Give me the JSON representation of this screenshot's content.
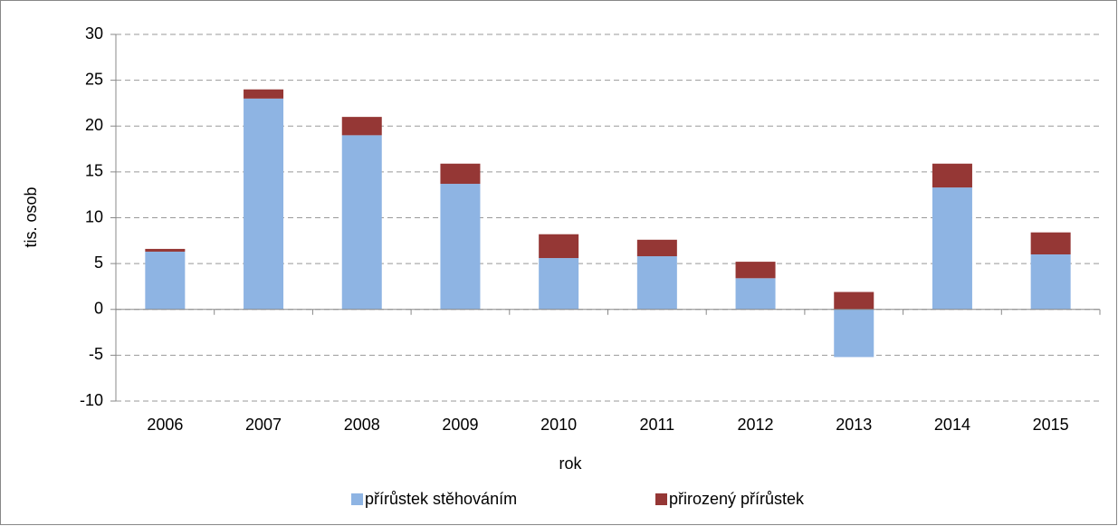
{
  "chart_data": {
    "type": "bar",
    "stacked": true,
    "x_label": "rok",
    "y_label": "tis. osob",
    "categories": [
      "2006",
      "2007",
      "2008",
      "2009",
      "2010",
      "2011",
      "2012",
      "2013",
      "2014",
      "2015"
    ],
    "series": [
      {
        "name": "přírůstek stěhováním",
        "color": "#8eb4e3",
        "values": [
          6.3,
          23.0,
          19.0,
          13.7,
          5.6,
          5.8,
          3.4,
          -5.2,
          13.3,
          6.0
        ]
      },
      {
        "name": "přirozený přírůstek",
        "color": "#953735",
        "values": [
          0.3,
          1.0,
          2.0,
          2.2,
          2.6,
          1.8,
          1.8,
          1.9,
          2.6,
          2.4
        ]
      }
    ],
    "ylim": [
      -10,
      30
    ],
    "yticks": [
      -10,
      -5,
      0,
      5,
      10,
      15,
      20,
      25,
      30
    ],
    "grid": true,
    "legend": "bottom"
  }
}
